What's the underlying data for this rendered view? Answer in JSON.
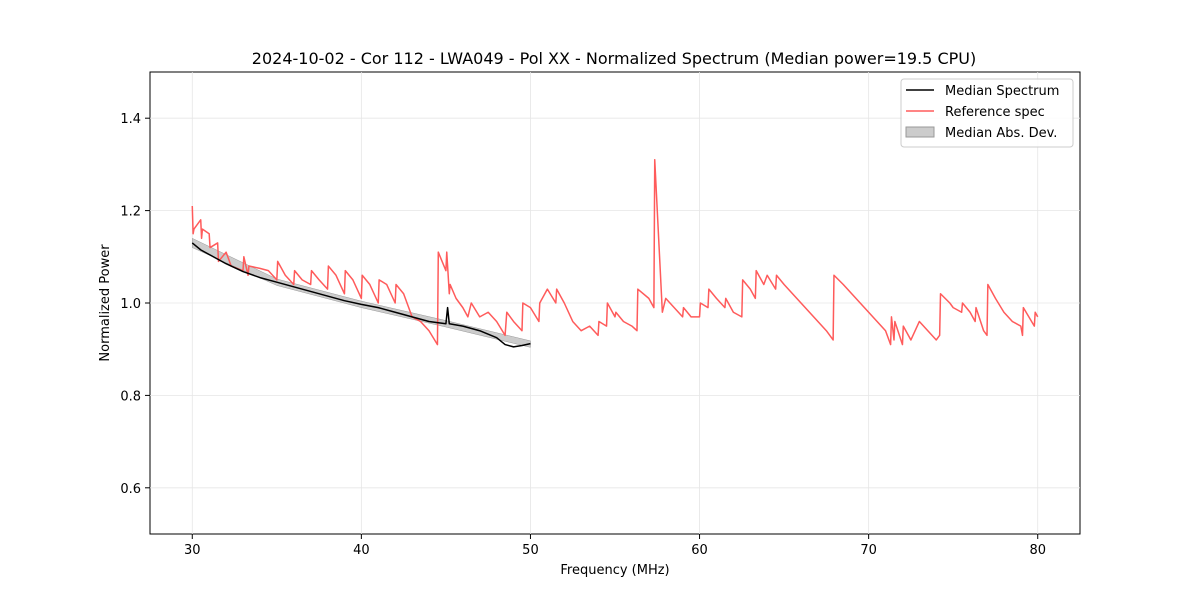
{
  "chart_data": {
    "type": "line",
    "title": "2024-10-02 - Cor 112 - LWA049 - Pol XX - Normalized Spectrum (Median power=19.5 CPU)",
    "xlabel": "Frequency (MHz)",
    "ylabel": "Normalized Power",
    "xlim": [
      27.5,
      82.5
    ],
    "ylim": [
      0.5,
      1.5
    ],
    "xticks": [
      30,
      40,
      50,
      60,
      70,
      80
    ],
    "yticks": [
      0.6,
      0.8,
      1.0,
      1.2,
      1.4
    ],
    "xtick_labels": [
      "30",
      "40",
      "50",
      "60",
      "70",
      "80"
    ],
    "ytick_labels": [
      "0.6",
      "0.8",
      "1.0",
      "1.2",
      "1.4"
    ],
    "grid": true,
    "legend_position": "top-right",
    "series": [
      {
        "name": "Median Spectrum",
        "color": "#000000",
        "x": [
          30.0,
          30.5,
          31.0,
          31.5,
          32.0,
          33.0,
          34.0,
          35.0,
          36.0,
          37.0,
          38.0,
          39.0,
          40.0,
          41.0,
          42.0,
          43.0,
          44.0,
          45.0,
          45.1,
          45.2,
          46.0,
          47.0,
          48.0,
          48.5,
          49.0,
          49.5,
          50.0
        ],
        "y": [
          1.13,
          1.115,
          1.105,
          1.095,
          1.085,
          1.068,
          1.055,
          1.045,
          1.035,
          1.025,
          1.015,
          1.005,
          0.997,
          0.99,
          0.98,
          0.97,
          0.96,
          0.955,
          0.99,
          0.955,
          0.95,
          0.94,
          0.925,
          0.91,
          0.905,
          0.908,
          0.912
        ]
      },
      {
        "name": "Reference spec",
        "color": "#ff5b5b",
        "x": [
          30.0,
          30.05,
          30.1,
          30.5,
          30.55,
          30.6,
          31.0,
          31.05,
          31.5,
          31.55,
          32.0,
          32.3,
          33.0,
          33.05,
          33.3,
          33.35,
          34.0,
          34.5,
          35.0,
          35.05,
          35.5,
          36.0,
          36.05,
          36.5,
          37.0,
          37.05,
          37.5,
          38.0,
          38.05,
          38.5,
          39.0,
          39.05,
          39.5,
          40.0,
          40.05,
          40.5,
          41.0,
          41.05,
          41.5,
          42.0,
          42.05,
          42.5,
          43.0,
          43.5,
          44.0,
          44.5,
          44.55,
          45.0,
          45.05,
          45.2,
          45.25,
          45.6,
          46.0,
          46.3,
          46.5,
          47.0,
          47.5,
          48.0,
          48.5,
          48.6,
          49.0,
          49.5,
          49.55,
          50.0,
          50.5,
          50.55,
          51.0,
          51.5,
          51.55,
          52.0,
          52.5,
          53.0,
          53.5,
          54.0,
          54.05,
          54.5,
          54.55,
          55.0,
          55.05,
          55.5,
          56.0,
          56.3,
          56.35,
          57.0,
          57.3,
          57.35,
          57.8,
          58.0,
          58.5,
          59.0,
          59.05,
          59.5,
          60.0,
          60.05,
          60.5,
          60.55,
          61.0,
          61.5,
          61.55,
          62.0,
          62.5,
          62.55,
          63.0,
          63.3,
          63.35,
          63.8,
          64.0,
          64.5,
          64.55,
          65.0,
          65.5,
          66.0,
          66.5,
          67.0,
          67.5,
          67.9,
          67.95,
          68.5,
          69.0,
          69.5,
          70.0,
          70.5,
          71.0,
          71.3,
          71.35,
          71.5,
          71.55,
          72.0,
          72.05,
          72.5,
          73.0,
          73.5,
          74.0,
          74.2,
          74.25,
          74.8,
          75.0,
          75.5,
          75.55,
          76.0,
          76.3,
          76.35,
          76.8,
          77.0,
          77.05,
          77.5,
          78.0,
          78.5,
          79.0,
          79.1,
          79.15,
          79.8,
          79.85,
          80.0
        ],
        "y": [
          1.21,
          1.15,
          1.16,
          1.18,
          1.14,
          1.16,
          1.15,
          1.12,
          1.13,
          1.09,
          1.11,
          1.08,
          1.07,
          1.1,
          1.06,
          1.08,
          1.075,
          1.07,
          1.05,
          1.09,
          1.06,
          1.04,
          1.07,
          1.05,
          1.04,
          1.07,
          1.05,
          1.03,
          1.08,
          1.06,
          1.02,
          1.07,
          1.05,
          1.01,
          1.06,
          1.04,
          1.0,
          1.05,
          1.04,
          1.0,
          1.04,
          1.02,
          0.97,
          0.96,
          0.94,
          0.91,
          1.11,
          1.07,
          1.11,
          1.02,
          1.04,
          1.01,
          0.99,
          0.97,
          1.0,
          0.97,
          0.98,
          0.96,
          0.93,
          0.98,
          0.96,
          0.94,
          1.0,
          0.99,
          0.96,
          1.0,
          1.03,
          1.0,
          1.03,
          1.0,
          0.96,
          0.94,
          0.95,
          0.93,
          0.96,
          0.95,
          1.0,
          0.97,
          0.98,
          0.96,
          0.95,
          0.94,
          1.03,
          1.01,
          0.99,
          1.31,
          0.98,
          1.01,
          0.99,
          0.97,
          0.99,
          0.97,
          0.97,
          1.0,
          0.99,
          1.03,
          1.01,
          0.99,
          1.01,
          0.98,
          0.97,
          1.05,
          1.03,
          1.01,
          1.07,
          1.04,
          1.06,
          1.03,
          1.06,
          1.04,
          1.02,
          1.0,
          0.98,
          0.96,
          0.94,
          0.92,
          1.06,
          1.04,
          1.02,
          1.0,
          0.98,
          0.96,
          0.94,
          0.91,
          0.97,
          0.92,
          0.96,
          0.91,
          0.95,
          0.92,
          0.96,
          0.94,
          0.92,
          0.93,
          1.02,
          1.0,
          0.99,
          0.98,
          1.0,
          0.98,
          0.96,
          0.99,
          0.94,
          0.93,
          1.04,
          1.01,
          0.98,
          0.96,
          0.95,
          0.93,
          0.99,
          0.95,
          0.98,
          0.97
        ]
      },
      {
        "name": "Median Abs. Dev.",
        "color": "#999999",
        "type": "band",
        "x": [
          30.0,
          35.0,
          40.0,
          45.0,
          50.0
        ],
        "upper": [
          1.14,
          1.052,
          1.004,
          0.962,
          0.918
        ],
        "lower": [
          1.12,
          1.038,
          0.99,
          0.948,
          0.904
        ]
      }
    ],
    "legend": [
      "Median Spectrum",
      "Reference spec",
      "Median Abs. Dev."
    ]
  }
}
